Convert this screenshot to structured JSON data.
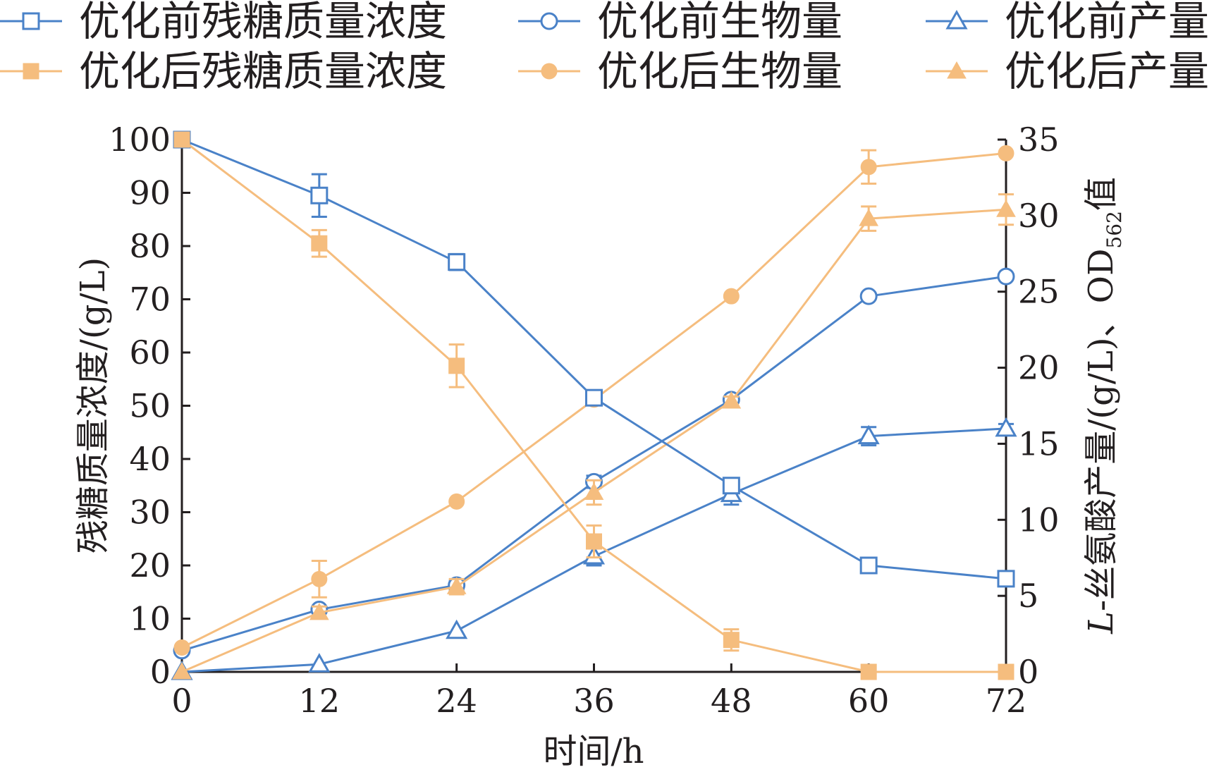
{
  "chart_data": {
    "type": "line",
    "xlabel": "时间/h",
    "ylabel_left": "残糖质量浓度/(g/L)",
    "ylabel_right": {
      "prefix_italic": "L",
      "main": "-丝氨酸产量/(g/L)、OD",
      "subscript": "562",
      "suffix": "值"
    },
    "x_ticks": [
      "0",
      "12",
      "24",
      "36",
      "48",
      "60",
      "72"
    ],
    "y_left_ticks": [
      "0",
      "10",
      "20",
      "30",
      "40",
      "50",
      "60",
      "70",
      "80",
      "90",
      "100"
    ],
    "y_right_ticks": [
      "0",
      "5",
      "10",
      "15",
      "20",
      "25",
      "30",
      "35"
    ],
    "xlim": [
      0,
      72
    ],
    "ylim_left": [
      0,
      100
    ],
    "ylim_right": [
      0,
      35
    ],
    "grid": false,
    "legend_position": "top",
    "colors": {
      "blue": "#4a82c8",
      "orange": "#f5bd7e",
      "axis": "#231f20"
    },
    "series": [
      {
        "name": "优化前残糖质量浓度",
        "axis": "left",
        "color": "#4a82c8",
        "marker": "square-open",
        "x": [
          0,
          12,
          24,
          36,
          48,
          60,
          72
        ],
        "y": [
          100,
          89.5,
          77,
          51.5,
          35,
          20,
          17.5
        ],
        "err": [
          0,
          4,
          1.5,
          1,
          1,
          0.5,
          0.5
        ]
      },
      {
        "name": "优化前生物量",
        "axis": "right",
        "color": "#4a82c8",
        "marker": "circle-open",
        "x": [
          0,
          12,
          24,
          36,
          48,
          60,
          72
        ],
        "y": [
          1.4,
          4.1,
          5.7,
          12.5,
          17.9,
          24.7,
          26
        ],
        "err": [
          0,
          0,
          0.3,
          0.4,
          0,
          0,
          0
        ]
      },
      {
        "name": "优化前产量",
        "axis": "right",
        "color": "#4a82c8",
        "marker": "triangle-open",
        "x": [
          0,
          12,
          24,
          36,
          48,
          60,
          72
        ],
        "y": [
          0,
          0.5,
          2.7,
          7.6,
          11.7,
          15.5,
          16
        ],
        "err": [
          0,
          0,
          0,
          0.6,
          0.7,
          0.6,
          0.3
        ]
      },
      {
        "name": "优化后残糖质量浓度",
        "axis": "left",
        "color": "#f5bd7e",
        "marker": "square-filled",
        "x": [
          0,
          12,
          24,
          36,
          48,
          60,
          72
        ],
        "y": [
          100,
          80.5,
          57.5,
          24.5,
          6,
          0,
          0
        ],
        "err": [
          0,
          2.5,
          4,
          3,
          2,
          0,
          0
        ]
      },
      {
        "name": "优化后生物量",
        "axis": "right",
        "color": "#f5bd7e",
        "marker": "circle-filled",
        "x": [
          0,
          12,
          24,
          36,
          48,
          60,
          72
        ],
        "y": [
          1.6,
          6.1,
          11.2,
          17.9,
          24.7,
          33.2,
          34.1
        ],
        "err": [
          0,
          1.2,
          0,
          0,
          0,
          1.1,
          0
        ]
      },
      {
        "name": "优化后产量",
        "axis": "right",
        "color": "#f5bd7e",
        "marker": "triangle-filled",
        "x": [
          0,
          12,
          24,
          36,
          48,
          60,
          72
        ],
        "y": [
          0,
          3.9,
          5.6,
          11.8,
          17.8,
          29.8,
          30.4
        ],
        "err": [
          0,
          0.4,
          0.5,
          0.8,
          0.3,
          0.8,
          1
        ]
      }
    ]
  }
}
